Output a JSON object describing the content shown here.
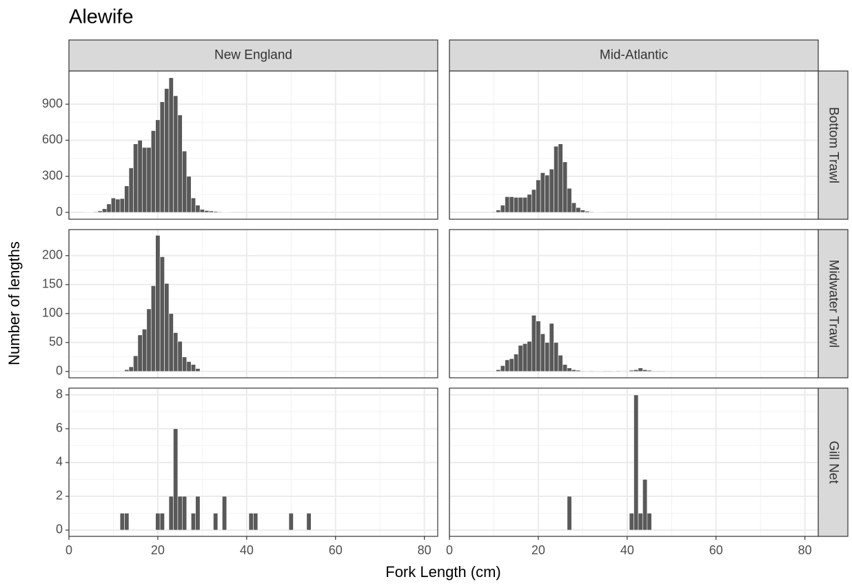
{
  "chart_data": {
    "type": "histogram",
    "title": "Alewife",
    "xlabel": "Fork Length (cm)",
    "ylabel": "Number of lengths",
    "color": "#595959",
    "grid": true,
    "xlim": [
      0,
      83
    ],
    "xticks": [
      0,
      20,
      40,
      60,
      80
    ],
    "columns": [
      "New England",
      "Mid-Atlantic"
    ],
    "rows": [
      {
        "name": "Bottom Trawl",
        "ylim": [
          -57,
          1176
        ],
        "yticks": [
          0,
          300,
          600,
          900
        ],
        "panels": [
          {
            "bins": [
              3.5,
              4.5,
              5.5,
              6.5,
              7.5,
              8.5,
              9.5,
              10.5,
              11.5,
              12.5,
              13.5,
              14.5,
              15.5,
              16.5,
              17.5,
              18.5,
              19.5,
              20.5,
              21.5,
              22.5,
              23.5,
              24.5,
              25.5,
              26.5,
              27.5,
              28.5,
              29.5,
              30.5,
              31.5,
              32.5,
              33.5,
              34.5,
              35.5,
              36.5
            ],
            "counts": [
              2,
              3,
              5,
              12,
              30,
              70,
              120,
              110,
              115,
              220,
              370,
              570,
              600,
              540,
              540,
              680,
              770,
              920,
              1030,
              1120,
              970,
              810,
              510,
              300,
              120,
              60,
              25,
              15,
              12,
              8,
              5,
              3,
              2
            ]
          },
          {
            "bins": [
              9.5,
              10.5,
              11.5,
              12.5,
              13.5,
              14.5,
              15.5,
              16.5,
              17.5,
              18.5,
              19.5,
              20.5,
              21.5,
              22.5,
              23.5,
              24.5,
              25.5,
              26.5,
              27.5,
              28.5,
              29.5,
              30.5,
              31.5,
              32.5,
              33.5,
              34.5,
              35.5
            ],
            "counts": [
              5,
              20,
              60,
              130,
              130,
              125,
              125,
              125,
              150,
              190,
              270,
              330,
              310,
              360,
              550,
              570,
              420,
              200,
              80,
              40,
              20,
              10,
              5,
              3,
              2,
              1
            ]
          }
        ]
      },
      {
        "name": "Midwater Trawl",
        "ylim": [
          -11,
          245
        ],
        "yticks": [
          0,
          50,
          100,
          150,
          200
        ],
        "panels": [
          {
            "bins": [
              12.5,
              13.5,
              14.5,
              15.5,
              16.5,
              17.5,
              18.5,
              19.5,
              20.5,
              21.5,
              22.5,
              23.5,
              24.5,
              25.5,
              26.5,
              27.5,
              28.5,
              29.5
            ],
            "counts": [
              3,
              8,
              27,
              63,
              73,
              108,
              148,
              235,
              198,
              152,
              100,
              67,
              52,
              25,
              17,
              12,
              5
            ]
          },
          {
            "bins": [
              10.5,
              11.5,
              12.5,
              13.5,
              14.5,
              15.5,
              16.5,
              17.5,
              18.5,
              19.5,
              20.5,
              21.5,
              22.5,
              23.5,
              24.5,
              25.5,
              26.5,
              27.5,
              28.5,
              29.5,
              30.5,
              31.5,
              32.5,
              33.5,
              34.5,
              35.5,
              36.5,
              37.5,
              38.5,
              39.5,
              40.5,
              41.5,
              42.5,
              43.5,
              44.5,
              45.5,
              46.5,
              47.5,
              48.5
            ],
            "counts": [
              3,
              10,
              20,
              22,
              30,
              45,
              48,
              52,
              97,
              87,
              65,
              50,
              83,
              50,
              28,
              12,
              6,
              3,
              2,
              1,
              0,
              1,
              0,
              0,
              1,
              1,
              0,
              1,
              0,
              0,
              2,
              3,
              6,
              3,
              2,
              1,
              1,
              1
            ]
          }
        ]
      },
      {
        "name": "Gill Net",
        "ylim": [
          -0.37,
          8.4
        ],
        "yticks": [
          0,
          2,
          4,
          6,
          8
        ],
        "panels": [
          {
            "bins": [
              11.5,
              12.5,
              13.5,
              14.5,
              15.5,
              16.5,
              17.5,
              18.5,
              19.5,
              20.5,
              21.5,
              22.5,
              23.5,
              24.5,
              25.5,
              26.5,
              27.5,
              28.5,
              29.5,
              30.5,
              31.5,
              32.5,
              33.5,
              34.5,
              35.5,
              36.5,
              37.5,
              38.5,
              39.5,
              40.5,
              41.5,
              42.5,
              43.5,
              44.5,
              45.5,
              46.5,
              47.5,
              48.5,
              49.5,
              50.5,
              51.5,
              52.5,
              53.5,
              54.5
            ],
            "counts": [
              1,
              1,
              0,
              0,
              0,
              0,
              0,
              0,
              1,
              1,
              0,
              2,
              6,
              2,
              2,
              0,
              1,
              2,
              0,
              0,
              0,
              1,
              0,
              2,
              0,
              0,
              0,
              0,
              0,
              1,
              1,
              0,
              0,
              0,
              0,
              0,
              0,
              0,
              1,
              0,
              0,
              0,
              1
            ]
          },
          {
            "bins": [
              26.5,
              27.5,
              28.5,
              29.5,
              30.5,
              31.5,
              32.5,
              33.5,
              34.5,
              35.5,
              36.5,
              37.5,
              38.5,
              39.5,
              40.5,
              41.5,
              42.5,
              43.5,
              44.5,
              45.5
            ],
            "counts": [
              2,
              0,
              0,
              0,
              0,
              0,
              0,
              0,
              0,
              0,
              0,
              0,
              0,
              0,
              1,
              8,
              1,
              3,
              1
            ]
          }
        ]
      }
    ]
  }
}
